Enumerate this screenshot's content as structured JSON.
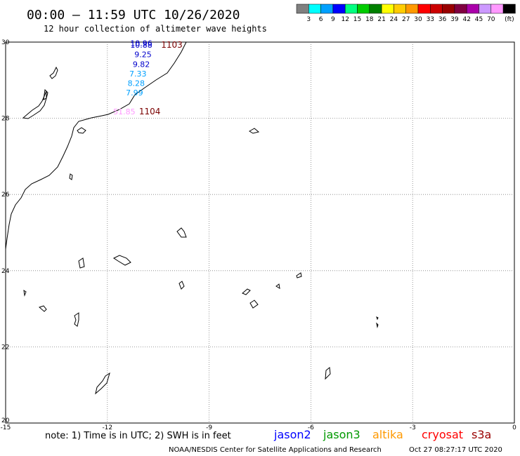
{
  "header": {
    "title": "00:00 – 11:59 UTC 10/26/2020",
    "subtitle": "12 hour collection of altimeter wave heights"
  },
  "scale": {
    "unit": "(ft)",
    "bins": [
      {
        "label": "",
        "color": "#808080"
      },
      {
        "label": "3",
        "color": "#00ffff"
      },
      {
        "label": "6",
        "color": "#00a0ff"
      },
      {
        "label": "9",
        "color": "#0000ff"
      },
      {
        "label": "12",
        "color": "#00ff80"
      },
      {
        "label": "15",
        "color": "#00cc00"
      },
      {
        "label": "18",
        "color": "#008000"
      },
      {
        "label": "21",
        "color": "#ffff00"
      },
      {
        "label": "24",
        "color": "#ffcc00"
      },
      {
        "label": "27",
        "color": "#ff9900"
      },
      {
        "label": "30",
        "color": "#ff0000"
      },
      {
        "label": "33",
        "color": "#cc0000"
      },
      {
        "label": "36",
        "color": "#990000"
      },
      {
        "label": "39",
        "color": "#800040"
      },
      {
        "label": "42",
        "color": "#aa00aa"
      },
      {
        "label": "45",
        "color": "#cc99ff"
      },
      {
        "label": "70",
        "color": "#ff99ff"
      },
      {
        "label": "",
        "color": "#000000"
      }
    ]
  },
  "chart_data": {
    "type": "scatter",
    "x_ticks": [
      "-15",
      "-12",
      "-9",
      "-6",
      "-3",
      "0"
    ],
    "y_ticks": [
      "30",
      "28",
      "26",
      "24",
      "22",
      "20"
    ],
    "x_range": [
      -15,
      0
    ],
    "y_range": [
      20,
      30
    ],
    "grid": true,
    "observations": [
      {
        "text": "10.96",
        "lon": -11.0,
        "lat": 29.9,
        "color": "#0000cc"
      },
      {
        "text": "10.88",
        "lon": -11.0,
        "lat": 29.85,
        "color": "#0000cc"
      },
      {
        "text": "9.25",
        "lon": -10.95,
        "lat": 29.6,
        "color": "#0000cc"
      },
      {
        "text": "9.82",
        "lon": -11.0,
        "lat": 29.35,
        "color": "#0000cc"
      },
      {
        "text": "7.33",
        "lon": -11.1,
        "lat": 29.1,
        "color": "#00a0ff"
      },
      {
        "text": "8.28",
        "lon": -11.15,
        "lat": 28.85,
        "color": "#00a0ff"
      },
      {
        "text": "7.99",
        "lon": -11.2,
        "lat": 28.6,
        "color": "#00a0ff"
      },
      {
        "text": "51.85",
        "lon": -11.5,
        "lat": 28.1,
        "color": "#ff99ff"
      }
    ],
    "track_labels": [
      {
        "text": "1103",
        "lon": -10.1,
        "lat": 29.85,
        "color": "#7a0000"
      },
      {
        "text": "1104",
        "lon": -10.75,
        "lat": 28.1,
        "color": "#7a0000"
      }
    ]
  },
  "footer": {
    "note": "note:  1) Time is in UTC;  2) SWH is in feet",
    "satellites": [
      {
        "name": "jason2",
        "color": "#0000ff"
      },
      {
        "name": "jason3",
        "color": "#009900"
      },
      {
        "name": "altika",
        "color": "#ff9900"
      },
      {
        "name": "cryosat",
        "color": "#ff0000"
      },
      {
        "name": "s3a",
        "color": "#990000"
      }
    ],
    "credit": "NOAA/NESDIS Center for Satellite Applications and Research",
    "timestamp": "Oct 27 08:27:17 UTC 2020"
  }
}
